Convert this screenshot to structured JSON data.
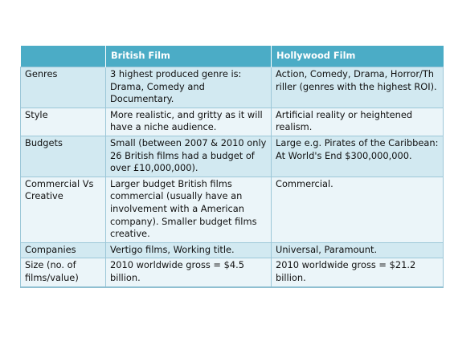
{
  "table": {
    "headers": [
      "",
      "British Film",
      "Hollywood Film"
    ],
    "rows": [
      [
        "Genres",
        "3 highest produced genre is: Drama, Comedy and Documentary.",
        "Action, Comedy, Drama, Horror/Th riller (genres with the highest ROI)."
      ],
      [
        "Style",
        "More realistic, and gritty as it will have a niche audience.",
        "Artificial reality or heightened realism."
      ],
      [
        "Budgets",
        "Small (between 2007 & 2010 only 26 British films had a budget of over £10,000,000).",
        "Large e.g. Pirates of the Caribbean: At World's End $300,000,000."
      ],
      [
        "Commercial Vs Creative",
        "Larger budget British films commercial (usually have an involvement with a American company). Smaller budget films creative.",
        "Commercial."
      ],
      [
        "Companies",
        "Vertigo films, Working title.",
        "Universal, Paramount."
      ],
      [
        "Size (no. of films/value)",
        "2010 worldwide gross = $4.5 billion.",
        "2010 worldwide gross = $21.2 billion."
      ]
    ]
  },
  "colors": {
    "header": "#4bacc6",
    "row_odd": "#d2e9f1",
    "row_even": "#ebf5f9"
  }
}
